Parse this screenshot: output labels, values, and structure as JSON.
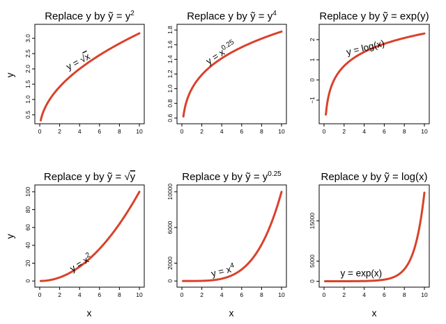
{
  "figure": {
    "outer_xlabels": [
      "x",
      "x",
      "x"
    ],
    "outer_ylabels": [
      "y",
      "y"
    ]
  },
  "chart_data": [
    {
      "type": "line",
      "title": "Replace y by ỹ = y²",
      "title_parts": {
        "prefix": "Replace y by ",
        "tilde_var": "y",
        "eq": " = y",
        "sup": "2"
      },
      "xlabel": "x",
      "ylabel": "y",
      "xlim": [
        0,
        10
      ],
      "ylim": [
        0.32,
        3.32
      ],
      "xticks": [
        0,
        2,
        4,
        6,
        8,
        10
      ],
      "yticks": [
        0.5,
        1.0,
        1.5,
        2.0,
        2.5,
        3.0
      ],
      "ytick_labels": [
        "0.5",
        "1.0",
        "1.5",
        "2.0",
        "2.5",
        "3.0"
      ],
      "series": [
        {
          "function": "sqrt(x)",
          "x_range": [
            0.1,
            10
          ],
          "color": "#d9412b"
        }
      ],
      "annotation": {
        "text": "y = √x",
        "base": "y = ",
        "radicand": "x",
        "x": 4.0,
        "y": 2.15,
        "rotation": -28
      }
    },
    {
      "type": "line",
      "title": "Replace y by ỹ = y⁴",
      "title_parts": {
        "prefix": "Replace y by ",
        "tilde_var": "y",
        "eq": " = y",
        "sup": "4"
      },
      "xlabel": "x",
      "ylabel": "y",
      "xlim": [
        0,
        10
      ],
      "ylim": [
        0.57,
        1.82
      ],
      "xticks": [
        0,
        2,
        4,
        6,
        8,
        10
      ],
      "yticks": [
        0.6,
        0.8,
        1.0,
        1.2,
        1.4,
        1.6,
        1.8
      ],
      "ytick_labels": [
        "0.6",
        "0.8",
        "1.0",
        "1.2",
        "1.4",
        "1.6",
        "1.8"
      ],
      "series": [
        {
          "function": "x^0.25",
          "x_range": [
            0.15,
            10
          ],
          "color": "#d9412b"
        }
      ],
      "annotation": {
        "text": "y = x^0.25",
        "base": "y = x",
        "sup": "0.25",
        "x": 4.1,
        "y": 1.45,
        "rotation": -33
      }
    },
    {
      "type": "line",
      "title": "Replace y by ỹ = exp(y)",
      "title_parts": {
        "prefix": "Replace y by ",
        "tilde_var": "y",
        "eq": " = exp(y)",
        "sup": ""
      },
      "xlabel": "x",
      "ylabel": "y",
      "xlim": [
        0,
        10
      ],
      "ylim": [
        -2.0,
        2.55
      ],
      "xticks": [
        0,
        2,
        4,
        6,
        8,
        10
      ],
      "yticks": [
        -1,
        0,
        1,
        2
      ],
      "ytick_labels": [
        "−1",
        "0",
        "1",
        "2"
      ],
      "series": [
        {
          "function": "log(x)",
          "x_range": [
            0.18,
            10
          ],
          "color": "#d9412b"
        }
      ],
      "annotation": {
        "text": "y = log(x)",
        "base": "y = log(x)",
        "x": 4.2,
        "y": 1.45,
        "rotation": -14
      }
    },
    {
      "type": "line",
      "title": "Replace y by ỹ = √y",
      "title_parts": {
        "prefix": "Replace y by ",
        "tilde_var": "y",
        "eq": " = ",
        "radicand": "y"
      },
      "xlabel": "x",
      "ylabel": "y",
      "xlim": [
        0,
        10
      ],
      "ylim": [
        -3,
        103
      ],
      "xticks": [
        0,
        2,
        4,
        6,
        8,
        10
      ],
      "yticks": [
        0,
        20,
        40,
        60,
        80,
        100
      ],
      "ytick_labels": [
        "0",
        "20",
        "40",
        "60",
        "80",
        "100"
      ],
      "series": [
        {
          "function": "x^2",
          "x_range": [
            0.1,
            10
          ],
          "color": "#d9412b"
        }
      ],
      "annotation": {
        "text": "y = x²",
        "base": "y = x",
        "sup": "2",
        "x": 4.3,
        "y": 17,
        "rotation": -32
      }
    },
    {
      "type": "line",
      "title": "Replace y by ỹ = y^0.25",
      "title_parts": {
        "prefix": "Replace y by ",
        "tilde_var": "y",
        "eq": " = y",
        "sup": "0.25"
      },
      "xlabel": "x",
      "ylabel": "y",
      "xlim": [
        0,
        10
      ],
      "ylim": [
        -300,
        10300
      ],
      "xticks": [
        0,
        2,
        4,
        6,
        8,
        10
      ],
      "yticks": [
        0,
        2000,
        6000,
        10000
      ],
      "ytick_labels": [
        "0",
        "2000",
        "6000",
        "10000"
      ],
      "series": [
        {
          "function": "x^4",
          "x_range": [
            0.1,
            10
          ],
          "color": "#d9412b"
        }
      ],
      "annotation": {
        "text": "y = x⁴",
        "base": "y = x",
        "sup": "4",
        "x": 4.2,
        "y": 780,
        "rotation": -14
      }
    },
    {
      "type": "line",
      "title": "Replace y by ỹ = log(x)",
      "title_parts": {
        "prefix": "Replace y by ",
        "tilde_var": "y",
        "eq": " = log(x)",
        "sup": ""
      },
      "xlabel": "x",
      "ylabel": "y",
      "xlim": [
        0,
        10
      ],
      "ylim": [
        -600,
        22900
      ],
      "xticks": [
        0,
        2,
        4,
        6,
        8,
        10
      ],
      "yticks": [
        0,
        5000,
        15000
      ],
      "ytick_labels": [
        "0",
        "5000",
        "15000"
      ],
      "series": [
        {
          "function": "exp(x)",
          "x_range": [
            0.1,
            10
          ],
          "color": "#d9412b"
        }
      ],
      "annotation": {
        "text": "y = exp(x)",
        "base": "y = exp(x)",
        "x": 3.7,
        "y": 1200,
        "rotation": 0
      }
    }
  ]
}
